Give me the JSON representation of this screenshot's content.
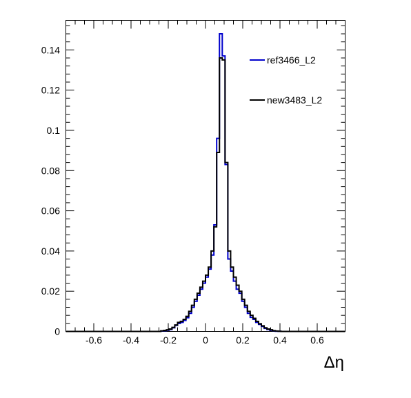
{
  "chart_data": {
    "type": "line",
    "title": "",
    "xlabel": "Δη",
    "ylabel": "",
    "xlim": [
      -0.75,
      0.75
    ],
    "ylim": [
      0,
      0.1547
    ],
    "xticks": [
      -0.6,
      -0.4,
      -0.2,
      0,
      0.2,
      0.4,
      0.6
    ],
    "xtick_labels": [
      "-0.6",
      "-0.4",
      "-0.2",
      "0",
      "0.2",
      "0.4",
      "0.6"
    ],
    "yticks": [
      0,
      0.02,
      0.04,
      0.06,
      0.08,
      0.1,
      0.12,
      0.14
    ],
    "ytick_labels": [
      "0",
      "0.02",
      "0.04",
      "0.06",
      "0.08",
      "0.1",
      "0.12",
      "0.14"
    ],
    "grid": false,
    "legend_position": "top-right",
    "bins": {
      "start": -0.75,
      "width": 0.015,
      "count": 100
    },
    "series": [
      {
        "name": "ref3466_L2",
        "color": "#0000cc",
        "values": [
          0,
          0,
          0,
          0,
          0,
          0,
          0,
          0,
          0,
          0,
          0,
          0,
          0,
          0,
          0,
          0,
          0,
          0,
          0,
          0,
          0,
          0,
          0,
          0,
          0,
          0,
          0,
          0,
          0,
          0,
          0,
          0,
          0,
          0,
          0.0002,
          0.0004,
          0.0006,
          0.001,
          0.0018,
          0.003,
          0.004,
          0.0045,
          0.0055,
          0.0068,
          0.009,
          0.012,
          0.015,
          0.018,
          0.021,
          0.024,
          0.027,
          0.031,
          0.038,
          0.053,
          0.096,
          0.148,
          0.137,
          0.083,
          0.036,
          0.03,
          0.025,
          0.021,
          0.019,
          0.015,
          0.012,
          0.009,
          0.007,
          0.006,
          0.0045,
          0.0035,
          0.0025,
          0.0015,
          0.001,
          0.0006,
          0.0003,
          0.0001,
          0.0001,
          0,
          0,
          0,
          0,
          0,
          0,
          0,
          0,
          0,
          0,
          0,
          0,
          0,
          0,
          0,
          0,
          0,
          0,
          0,
          0,
          0,
          0,
          0
        ]
      },
      {
        "name": "new3483_L2",
        "color": "#000000",
        "values": [
          0,
          0,
          0,
          0,
          0,
          0,
          0,
          0,
          0,
          0,
          0,
          0,
          0,
          0,
          0,
          0,
          0,
          0,
          0,
          0,
          0,
          0,
          0,
          0,
          0,
          0,
          0,
          0,
          0,
          0,
          0,
          0,
          0,
          0,
          0.0003,
          0.0005,
          0.0008,
          0.0012,
          0.002,
          0.0032,
          0.0045,
          0.005,
          0.006,
          0.0075,
          0.01,
          0.013,
          0.016,
          0.019,
          0.022,
          0.025,
          0.028,
          0.032,
          0.04,
          0.052,
          0.089,
          0.136,
          0.135,
          0.084,
          0.04,
          0.032,
          0.027,
          0.023,
          0.02,
          0.016,
          0.013,
          0.01,
          0.008,
          0.0065,
          0.005,
          0.0038,
          0.0028,
          0.0018,
          0.0012,
          0.0008,
          0.0004,
          0.0002,
          0.0001,
          0,
          0,
          0,
          0,
          0,
          0,
          0,
          0,
          0,
          0,
          0,
          0,
          0,
          0,
          0,
          0,
          0,
          0,
          0,
          0,
          0,
          0,
          0
        ]
      }
    ]
  }
}
